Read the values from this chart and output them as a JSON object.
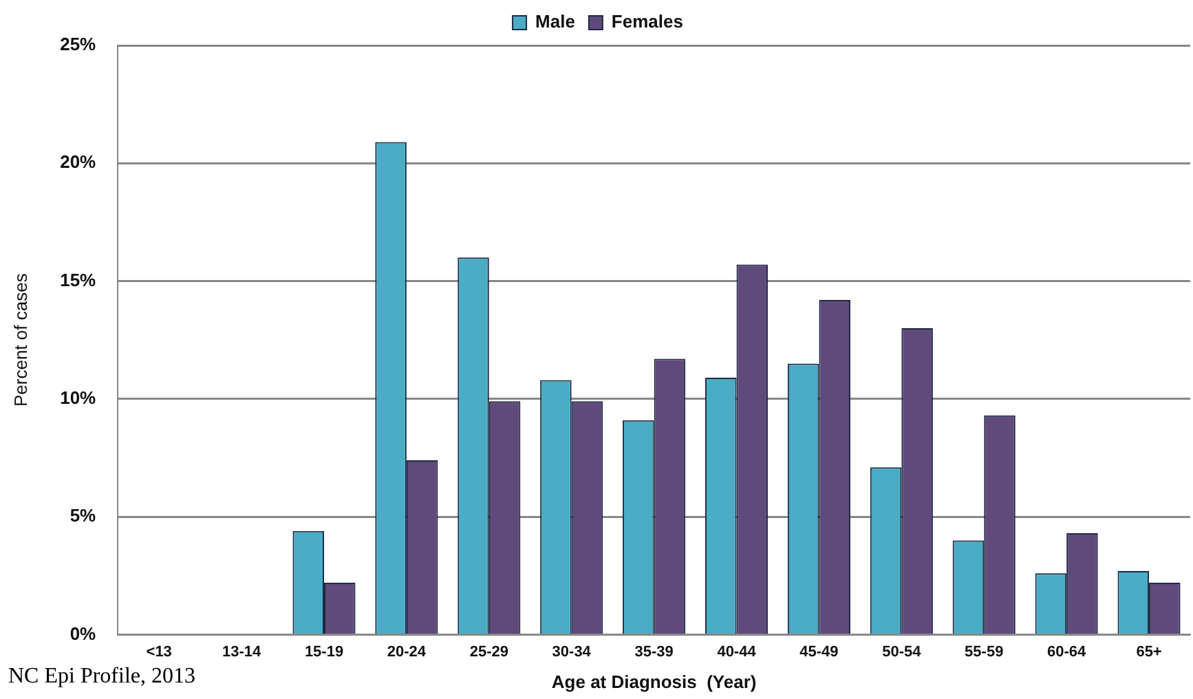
{
  "chart_data": {
    "type": "bar",
    "xlabel": "Age at Diagnosis  (Year)",
    "ylabel": "Percent of cases",
    "categories": [
      "<13",
      "13-14",
      "15-19",
      "20-24",
      "25-29",
      "30-34",
      "35-39",
      "40-44",
      "45-49",
      "50-54",
      "55-59",
      "60-64",
      "65+"
    ],
    "series": [
      {
        "name": "Male",
        "color": "#4bacc6",
        "values": [
          0,
          0,
          4.4,
          20.9,
          16.0,
          10.8,
          9.1,
          10.9,
          11.5,
          7.1,
          4.0,
          2.6,
          2.7
        ]
      },
      {
        "name": "Females",
        "color": "#604a7b",
        "values": [
          0,
          0,
          2.2,
          7.4,
          9.9,
          9.9,
          11.7,
          15.7,
          14.2,
          13.0,
          9.3,
          4.3,
          2.2
        ]
      }
    ],
    "ylim": [
      0,
      25
    ],
    "yticks": [
      {
        "value": 0,
        "label": "0%"
      },
      {
        "value": 5,
        "label": "5%"
      },
      {
        "value": 10,
        "label": "10%"
      },
      {
        "value": 15,
        "label": "15%"
      },
      {
        "value": 20,
        "label": "20%"
      },
      {
        "value": 25,
        "label": "25%"
      }
    ],
    "grid": "y",
    "legend": "top",
    "annotations": [
      "NC Epi Profile, 2013"
    ]
  }
}
